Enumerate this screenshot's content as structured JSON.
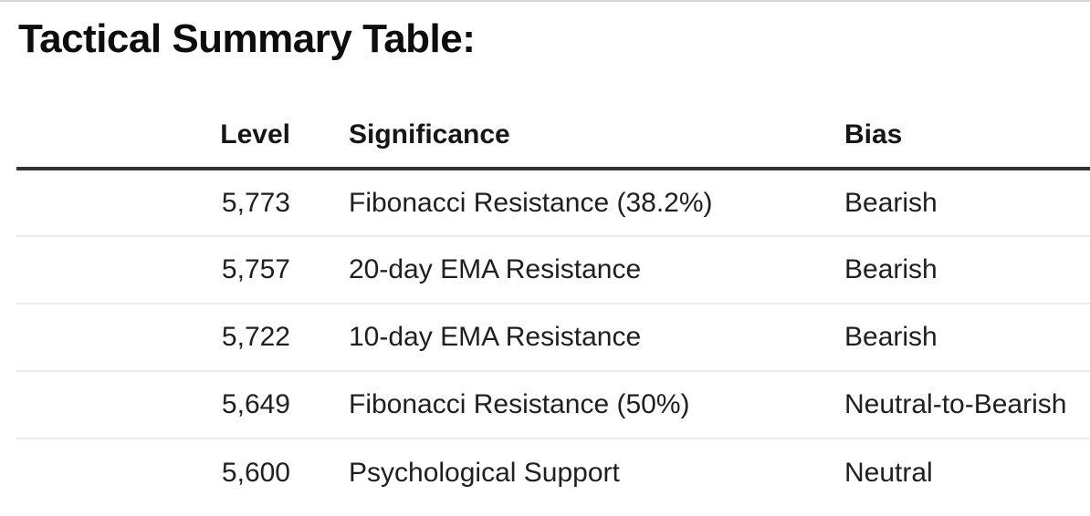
{
  "page": {
    "title": "Tactical Summary Table:"
  },
  "table": {
    "columns": [
      {
        "label": "Level"
      },
      {
        "label": "Significance"
      },
      {
        "label": "Bias"
      }
    ],
    "rows": [
      {
        "level": "5,773",
        "significance": "Fibonacci Resistance (38.2%)",
        "bias": "Bearish"
      },
      {
        "level": "5,757",
        "significance": "20-day EMA Resistance",
        "bias": "Bearish"
      },
      {
        "level": "5,722",
        "significance": "10-day EMA Resistance",
        "bias": "Bearish"
      },
      {
        "level": "5,649",
        "significance": "Fibonacci Resistance (50%)",
        "bias": "Neutral-to-Bearish"
      },
      {
        "level": "5,600",
        "significance": "Psychological Support",
        "bias": "Neutral"
      }
    ]
  },
  "colors": {
    "heading_text": "#0d0d0d",
    "body_text": "#1f1f1f",
    "header_rule": "#333333",
    "row_divider": "#ebebeb",
    "page_top_border": "#d6d6d6",
    "background": "#ffffff"
  }
}
